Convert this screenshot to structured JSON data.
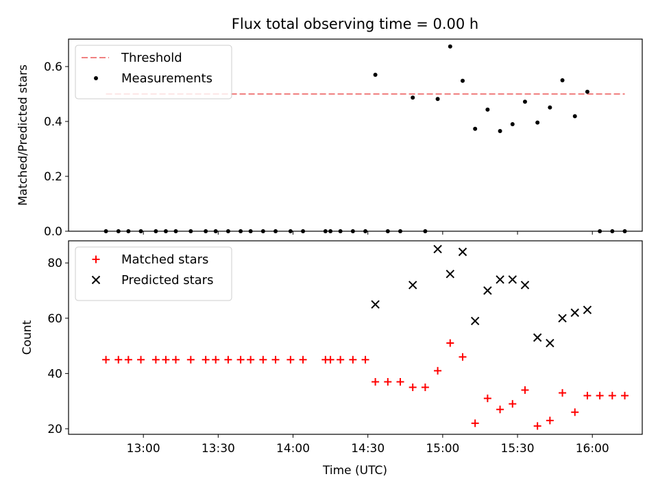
{
  "chart_data": [
    {
      "type": "scatter",
      "title": "Flux total observing time = 0.00 h",
      "xlabel": "",
      "ylabel": "Matched/Predicted stars",
      "ylim": [
        0,
        0.7
      ],
      "yticks": [
        "0.0",
        "0.2",
        "0.4",
        "0.6"
      ],
      "legend_position": "top-left",
      "grid": false,
      "threshold": {
        "name": "Threshold",
        "value": 0.5,
        "x_range": [
          "12:45",
          "16:13"
        ],
        "color": "#f08080",
        "style": "dashed"
      },
      "series": [
        {
          "name": "Measurements",
          "marker": "dot",
          "color": "#000000",
          "x": [
            "12:45",
            "12:50",
            "12:54",
            "12:59",
            "13:05",
            "13:09",
            "13:13",
            "13:19",
            "13:25",
            "13:29",
            "13:34",
            "13:39",
            "13:43",
            "13:48",
            "13:53",
            "13:59",
            "14:04",
            "14:13",
            "14:15",
            "14:19",
            "14:24",
            "14:29",
            "14:33",
            "14:38",
            "14:43",
            "14:48",
            "14:53",
            "14:58",
            "15:03",
            "15:08",
            "15:13",
            "15:18",
            "15:23",
            "15:28",
            "15:33",
            "15:38",
            "15:43",
            "15:48",
            "15:53",
            "15:58",
            "16:03",
            "16:08",
            "16:13"
          ],
          "y": [
            0,
            0,
            0,
            0,
            0,
            0,
            0,
            0,
            0,
            0,
            0,
            0,
            0,
            0,
            0,
            0,
            0,
            0,
            0,
            0,
            0,
            0,
            0.57,
            0,
            0,
            0.487,
            0,
            0.482,
            0.673,
            0.548,
            0.373,
            0.443,
            0.365,
            0.39,
            0.472,
            0.396,
            0.451,
            0.55,
            0.419,
            0.508,
            0,
            0,
            0
          ]
        }
      ]
    },
    {
      "type": "scatter",
      "xlabel": "Time (UTC)",
      "ylabel": "Count",
      "ylim": [
        18,
        88
      ],
      "yticks": [
        "20",
        "40",
        "60",
        "80"
      ],
      "xlim": [
        "12:30",
        "16:20"
      ],
      "xticks": [
        "13:00",
        "13:30",
        "14:00",
        "14:30",
        "15:00",
        "15:30",
        "16:00"
      ],
      "legend_position": "top-left",
      "grid": false,
      "series": [
        {
          "name": "Matched stars",
          "marker": "plus",
          "color": "#ff0000",
          "x": [
            "12:45",
            "12:50",
            "12:54",
            "12:59",
            "13:05",
            "13:09",
            "13:13",
            "13:19",
            "13:25",
            "13:29",
            "13:34",
            "13:39",
            "13:43",
            "13:48",
            "13:53",
            "13:59",
            "14:04",
            "14:13",
            "14:15",
            "14:19",
            "14:24",
            "14:29",
            "14:33",
            "14:38",
            "14:43",
            "14:48",
            "14:53",
            "14:58",
            "15:03",
            "15:08",
            "15:13",
            "15:18",
            "15:23",
            "15:28",
            "15:33",
            "15:38",
            "15:43",
            "15:48",
            "15:53",
            "15:58",
            "16:03",
            "16:08",
            "16:13"
          ],
          "y": [
            45,
            45,
            45,
            45,
            45,
            45,
            45,
            45,
            45,
            45,
            45,
            45,
            45,
            45,
            45,
            45,
            45,
            45,
            45,
            45,
            45,
            45,
            37,
            37,
            37,
            35,
            35,
            41,
            51,
            46,
            22,
            31,
            27,
            29,
            34,
            21,
            23,
            33,
            26,
            32,
            32,
            32,
            32
          ]
        },
        {
          "name": "Predicted stars",
          "marker": "x",
          "color": "#000000",
          "x": [
            "14:33",
            "14:48",
            "14:58",
            "15:03",
            "15:08",
            "15:13",
            "15:18",
            "15:23",
            "15:28",
            "15:33",
            "15:38",
            "15:43",
            "15:48",
            "15:53",
            "15:58"
          ],
          "y": [
            65,
            72,
            85,
            76,
            84,
            59,
            70,
            74,
            74,
            72,
            53,
            51,
            60,
            62,
            63
          ]
        }
      ]
    }
  ]
}
